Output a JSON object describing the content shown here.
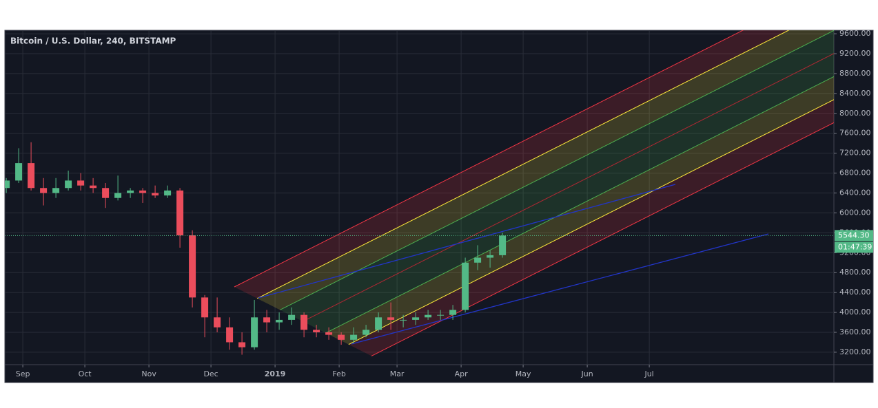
{
  "chart_data": {
    "type": "candlestick",
    "title": "Bitcoin / U.S. Dollar, 240, BITSTAMP",
    "x": [
      -8,
      -2,
      4,
      10,
      16,
      22,
      28,
      34,
      40,
      46,
      52,
      58,
      64,
      70,
      76,
      82,
      88,
      94,
      100,
      106,
      112,
      118,
      124,
      130,
      136,
      142,
      148,
      154,
      160,
      166,
      172,
      178,
      184,
      190,
      196,
      202,
      208,
      214,
      220,
      226,
      232
    ],
    "open": [
      6500,
      6650,
      7000,
      6500,
      6400,
      6500,
      6650,
      6550,
      6500,
      6300,
      6400,
      6450,
      6400,
      6350,
      6450,
      5550,
      4300,
      3900,
      3700,
      3400,
      3300,
      3900,
      3800,
      3850,
      3950,
      3650,
      3600,
      3550,
      3450,
      3550,
      3650,
      3900,
      3850,
      3850,
      3900,
      3950,
      3950,
      4050,
      5000,
      5100,
      5150
    ],
    "high": [
      6700,
      7300,
      7420,
      6700,
      6700,
      6850,
      6800,
      6700,
      6600,
      6750,
      6500,
      6500,
      6550,
      6550,
      6500,
      5650,
      4350,
      4300,
      3900,
      3600,
      4250,
      4050,
      4000,
      4100,
      4000,
      3750,
      3700,
      3600,
      3700,
      3750,
      4000,
      4200,
      3950,
      4000,
      4050,
      4050,
      4150,
      5100,
      5350,
      5250,
      5600
    ],
    "low": [
      6400,
      6600,
      6450,
      6150,
      6300,
      6450,
      6450,
      6400,
      6100,
      6250,
      6300,
      6200,
      6300,
      6300,
      5300,
      4100,
      3500,
      3600,
      3250,
      3150,
      3250,
      3600,
      3650,
      3750,
      3500,
      3500,
      3450,
      3350,
      3380,
      3500,
      3600,
      3650,
      3700,
      3750,
      3850,
      3850,
      3850,
      4000,
      4850,
      4900,
      5100
    ],
    "close": [
      6650,
      7000,
      6500,
      6400,
      6500,
      6650,
      6550,
      6500,
      6300,
      6400,
      6450,
      6400,
      6350,
      6450,
      5550,
      4300,
      3900,
      3700,
      3400,
      3300,
      3900,
      3800,
      3850,
      3950,
      3650,
      3600,
      3550,
      3450,
      3550,
      3650,
      3900,
      3850,
      3850,
      3900,
      3950,
      3950,
      4050,
      5000,
      5100,
      5150,
      5544.3
    ],
    "up_color": "#53b987",
    "down_color": "#eb4d5c",
    "xlim": [
      -8.7,
      392.3
    ],
    "xticks": [
      {
        "value": 0,
        "label": "Sep"
      },
      {
        "value": 30,
        "label": "Oct"
      },
      {
        "value": 61,
        "label": "Nov"
      },
      {
        "value": 91,
        "label": "Dec"
      },
      {
        "value": 122,
        "label": "2019"
      },
      {
        "value": 153,
        "label": "Feb"
      },
      {
        "value": 181,
        "label": "Mar"
      },
      {
        "value": 212,
        "label": "Apr"
      },
      {
        "value": 242,
        "label": "May"
      },
      {
        "value": 273,
        "label": "Jun"
      },
      {
        "value": 303,
        "label": "Jul"
      }
    ],
    "ylim": [
      2950,
      9670
    ],
    "yticks": [
      {
        "value": 3200,
        "label": "3200.00"
      },
      {
        "value": 3600,
        "label": "3600.00"
      },
      {
        "value": 4000,
        "label": "4000.00"
      },
      {
        "value": 4400,
        "label": "4400.00"
      },
      {
        "value": 4800,
        "label": "4800.00"
      },
      {
        "value": 5200,
        "label": "5200.00"
      },
      {
        "value": 5600,
        "label": "5600.00"
      },
      {
        "value": 6000,
        "label": "6000.00"
      },
      {
        "value": 6400,
        "label": "6400.00"
      },
      {
        "value": 6800,
        "label": "6800.00"
      },
      {
        "value": 7200,
        "label": "7200.00"
      },
      {
        "value": 7600,
        "label": "7600.00"
      },
      {
        "value": 8000,
        "label": "8000.00"
      },
      {
        "value": 8400,
        "label": "8400.00"
      },
      {
        "value": 8800,
        "label": "8800.00"
      },
      {
        "value": 9200,
        "label": "9200.00"
      },
      {
        "value": 9600,
        "label": "9600.00"
      }
    ],
    "grid": true,
    "last_price": {
      "value": 5544.3,
      "label": "5544.30"
    },
    "countdown": "01:47:39"
  }
}
